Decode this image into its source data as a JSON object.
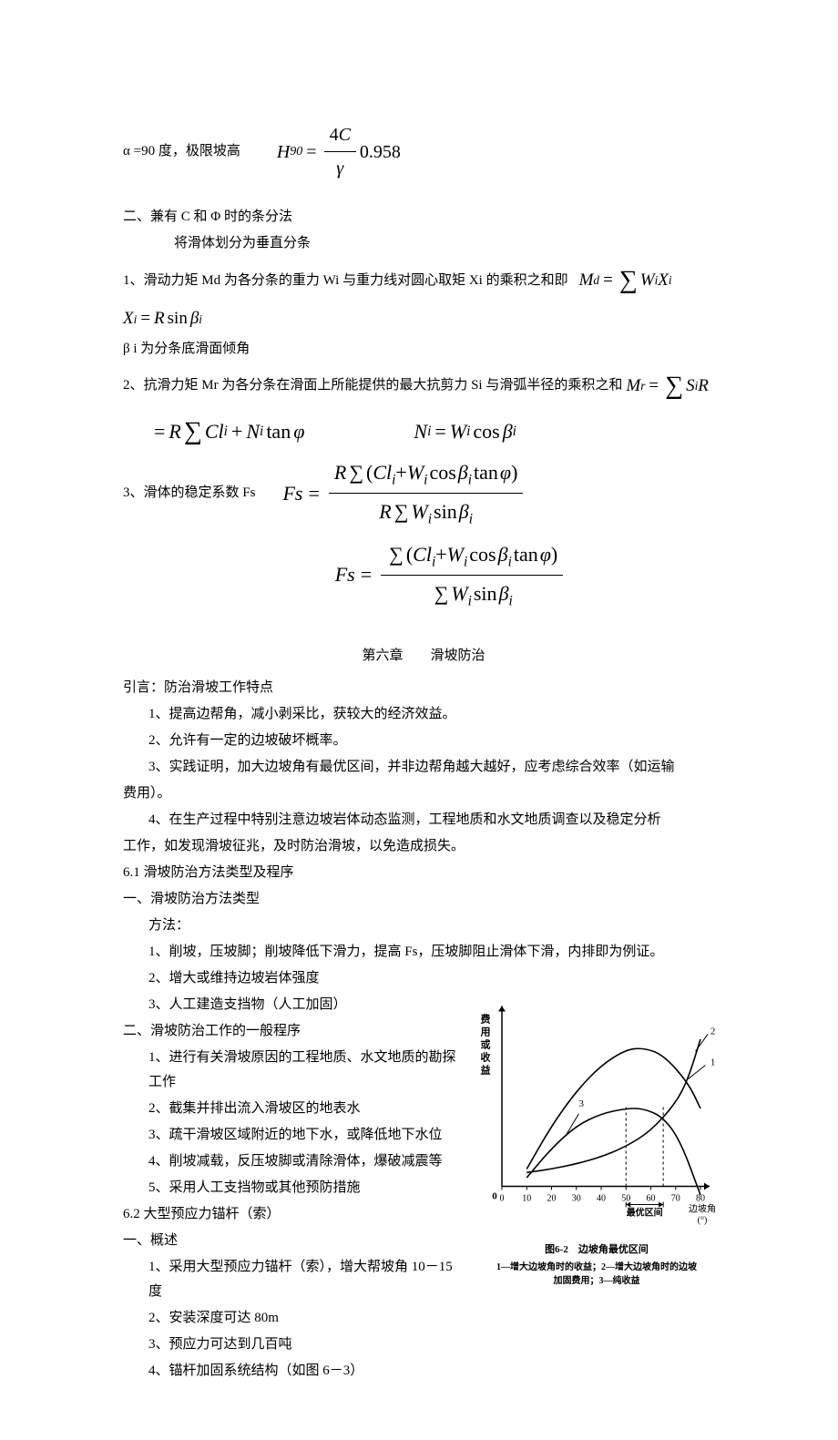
{
  "line1": {
    "prefix": "α =90 度，极限坡高",
    "lhs": "H",
    "lhs_sub": "90",
    "frac_num": "4C",
    "frac_den": "γ",
    "suffix": "0.958"
  },
  "section2": {
    "title": "二、兼有 C 和 Φ 时的条分法",
    "subtitle": "将滑体划分为垂直分条"
  },
  "item1": {
    "text": "1、滑动力矩 Md 为各分条的重力 Wi 与重力线对圆心取矩 Xi 的乘积之和即",
    "f_lhs": "M",
    "f_lhs_sub": "d",
    "f_rhs_w": "W",
    "f_rhs_wi": "i",
    "f_rhs_x": "X",
    "f_rhs_xi": "i"
  },
  "item1b": {
    "lhs": "X",
    "lhs_sub": "i",
    "r": "R",
    "sin": "sin",
    "beta": "β",
    "beta_sub": "i"
  },
  "beta_note": "β i 为分条底滑面倾角",
  "item2": {
    "text": "2、抗滑力矩 Mr 为各分条在滑面上所能提供的最大抗剪力 Si 与滑弧半径的乘积之和",
    "m": "M",
    "m_sub": "r",
    "s": "S",
    "s_sub": "i",
    "r": "R"
  },
  "item2b": {
    "r1": "R",
    "c": "Cl",
    "c_sub": "i",
    "n": "N",
    "n_sub": "i",
    "tan": "tan",
    "phi": "φ",
    "n2": "N",
    "n2_sub": "i",
    "w": "W",
    "w_sub": "i",
    "cos": "cos",
    "beta": "β",
    "beta_sub": "i"
  },
  "item3": {
    "text": "3、滑体的稳定系数 Fs",
    "fs": "Fs",
    "r": "R",
    "c": "Cl",
    "c_sub": "i",
    "w": "W",
    "w_sub": "i",
    "cos": "cos",
    "beta": "β",
    "beta_sub": "i",
    "tan": "tan",
    "phi": "φ",
    "sin": "sin"
  },
  "chapter6": "第六章　　滑坡防治",
  "intro": "引言：防治滑坡工作特点",
  "intro_items": [
    "1、提高边帮角，减小剥采比，获较大的经济效益。",
    "2、允许有一定的边坡破坏概率。",
    "3、实践证明，加大边坡角有最优区间，并非边帮角越大越好，应考虑综合效率（如运输",
    "4、在生产过程中特别注意边坡岩体动态监测，工程地质和水文地质调查以及稳定分析"
  ],
  "intro_item3_cont": "费用）。",
  "intro_item4_cont": "工作，如发现滑坡征兆，及时防治滑坡，以免造成损失。",
  "sec61": "6.1 滑坡防治方法类型及程序",
  "sec61_1": "一、滑坡防治方法类型",
  "methods_label": "方法：",
  "methods": [
    "1、削坡，压坡脚；削坡降低下滑力，提高 Fs，压坡脚阻止滑体下滑，内排即为例证。",
    "2、增大或维持边坡岩体强度",
    "3、人工建造支挡物（人工加固）"
  ],
  "sec61_2": "二、滑坡防治工作的一般程序",
  "procedures": [
    "1、进行有关滑坡原因的工程地质、水文地质的勘探工作",
    "2、截集并排出流入滑坡区的地表水",
    "3、疏干滑坡区域附近的地下水，或降低地下水位",
    "4、削坡减载，反压坡脚或清除滑体，爆破减震等",
    "5、采用人工支挡物或其他预防措施"
  ],
  "sec62": "6.2 大型预应力锚杆（索）",
  "sec62_1": "一、概述",
  "overview": [
    "1、采用大型预应力锚杆（索），增大帮坡角 10－15 度",
    "2、安装深度可达 80m",
    "3、预应力可达到几百吨",
    "4、锚杆加固系统结构（如图 6－3）"
  ],
  "figure": {
    "ylabel": "费用或收益",
    "xlabel": "边坡角 (°)",
    "xticks": [
      "0",
      "10",
      "20",
      "30",
      "40",
      "50",
      "60",
      "70",
      "80"
    ],
    "range_label": "最优区间",
    "curve_labels": [
      "1",
      "2",
      "3"
    ],
    "caption": "图6-2　边坡角最优区间",
    "subcaption": "1—增大边坡角时的收益；2—增大边坡角时的边坡\n加固费用；3—纯收益",
    "bg_color": "#ffffff",
    "axis_color": "#000000",
    "tick_positions": [
      0,
      10,
      20,
      30,
      40,
      50,
      60,
      70,
      80
    ],
    "curve1": [
      [
        10,
        10
      ],
      [
        20,
        35
      ],
      [
        30,
        55
      ],
      [
        40,
        70
      ],
      [
        50,
        79
      ],
      [
        57,
        80
      ],
      [
        65,
        76
      ],
      [
        75,
        60
      ],
      [
        80,
        45
      ]
    ],
    "curve2": [
      [
        10,
        8
      ],
      [
        20,
        10
      ],
      [
        30,
        13
      ],
      [
        40,
        17
      ],
      [
        50,
        23
      ],
      [
        60,
        32
      ],
      [
        70,
        48
      ],
      [
        75,
        62
      ],
      [
        80,
        85
      ]
    ],
    "curve3": [
      [
        10,
        5
      ],
      [
        20,
        22
      ],
      [
        30,
        35
      ],
      [
        40,
        42
      ],
      [
        50,
        45
      ],
      [
        57,
        45
      ],
      [
        65,
        40
      ],
      [
        72,
        26
      ],
      [
        80,
        -5
      ]
    ],
    "optimal_x": [
      50,
      65
    ],
    "line_color": "#000000"
  }
}
